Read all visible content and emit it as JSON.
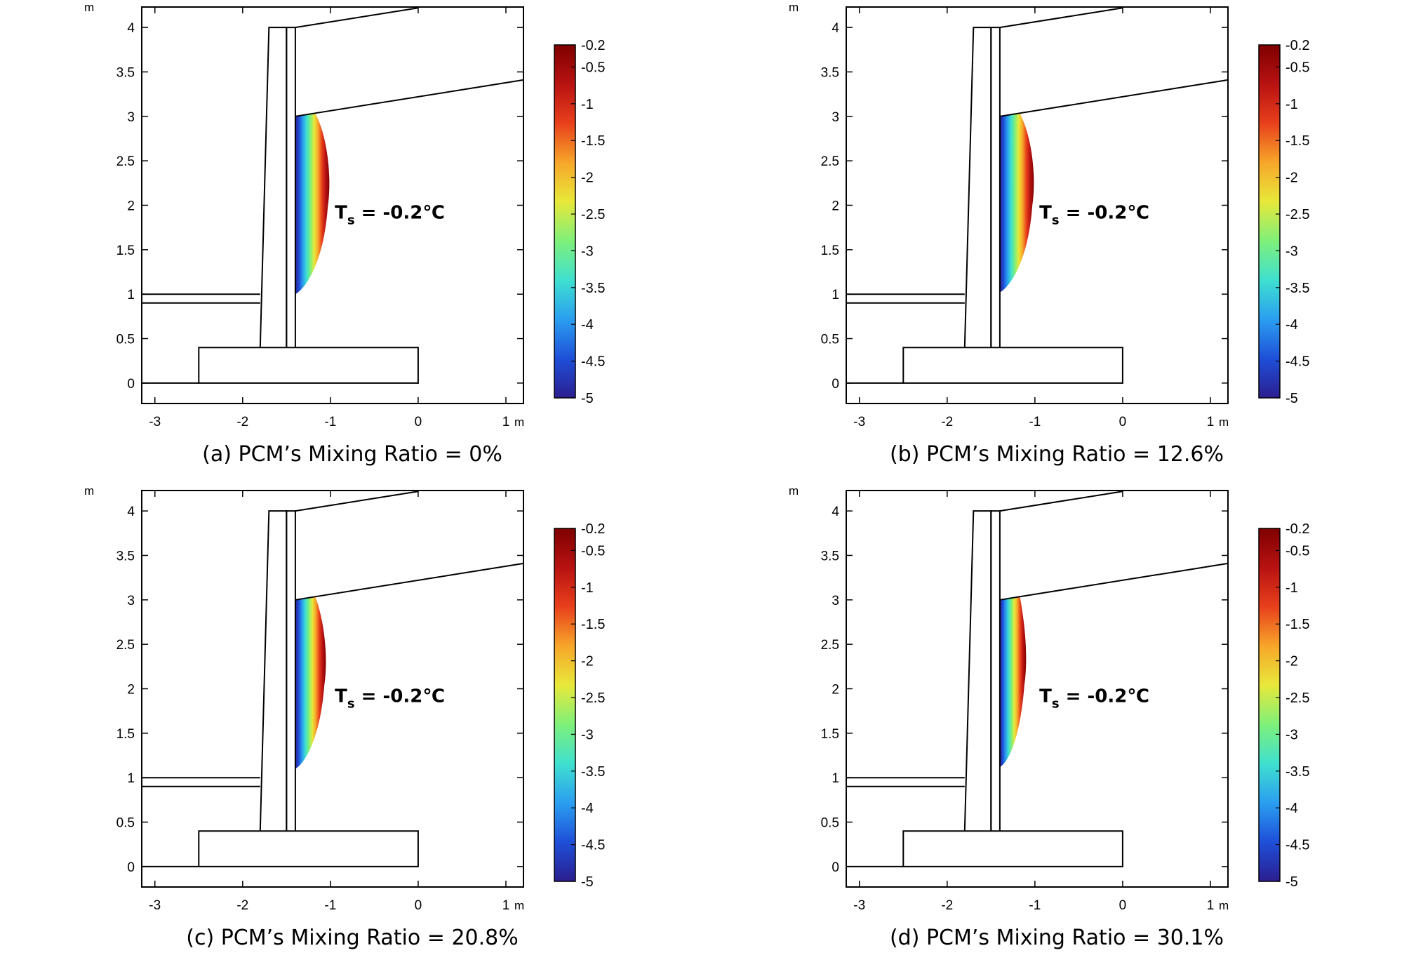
{
  "figure": {
    "panels": [
      {
        "caption": "(a) PCM’s Mixing Ratio = 0%",
        "annotation": "T",
        "annotation_sub": "s",
        "annotation_value": " = -0.2℃"
      },
      {
        "caption": "(b) PCM’s Mixing Ratio = 12.6%",
        "annotation": "T",
        "annotation_sub": "s",
        "annotation_value": " = -0.2℃"
      },
      {
        "caption": "(c) PCM’s Mixing Ratio = 20.8%",
        "annotation": "T",
        "annotation_sub": "s",
        "annotation_value": " = -0.2℃"
      },
      {
        "caption": "(d) PCM’s Mixing Ratio = 30.1%",
        "annotation": "T",
        "annotation_sub": "s",
        "annotation_value": " = -0.2℃"
      }
    ],
    "colors": {
      "line": "#000000",
      "background": "#ffffff"
    },
    "colormap": [
      "#2b1e8f",
      "#1e4fd8",
      "#2a9ef0",
      "#3fe0d0",
      "#7ef07a",
      "#e8e83a",
      "#f7a62a",
      "#e8401c",
      "#b81212",
      "#7f0000"
    ]
  },
  "chart_data": [
    {
      "type": "heatmap",
      "title": "",
      "xlabel": "m",
      "ylabel": "m",
      "x_ticks": [
        -3,
        -2,
        -1,
        0,
        1
      ],
      "x_tick_labels": [
        "-3",
        "-2",
        "-1",
        "0",
        "1"
      ],
      "y_ticks": [
        0,
        0.5,
        1,
        1.5,
        2,
        2.5,
        3,
        3.5,
        4
      ],
      "y_tick_labels": [
        "0",
        "0.5",
        "1",
        "1.5",
        "2",
        "2.5",
        "3",
        "3.5",
        "4"
      ],
      "xlim": [
        -3.15,
        1.2
      ],
      "ylim": [
        -0.23,
        4.23
      ],
      "colorbar": {
        "min": -5,
        "max": -0.2,
        "ticks": [
          -0.2,
          -0.5,
          -1,
          -1.5,
          -2,
          -2.5,
          -3,
          -3.5,
          -4,
          -4.5,
          -5
        ]
      },
      "frozen_zone": {
        "x_wall": -1.4,
        "y_top": 3.0,
        "y_bottom": 1.0,
        "x_max": -1.03
      },
      "annotation": "Ts = -0.2℃"
    },
    {
      "type": "heatmap",
      "title": "",
      "xlabel": "m",
      "ylabel": "m",
      "x_ticks": [
        -3,
        -2,
        -1,
        0,
        1
      ],
      "x_tick_labels": [
        "-3",
        "-2",
        "-1",
        "0",
        "1"
      ],
      "y_ticks": [
        0,
        0.5,
        1,
        1.5,
        2,
        2.5,
        3,
        3.5,
        4
      ],
      "y_tick_labels": [
        "0",
        "0.5",
        "1",
        "1.5",
        "2",
        "2.5",
        "3",
        "3.5",
        "4"
      ],
      "xlim": [
        -3.15,
        1.2
      ],
      "ylim": [
        -0.23,
        4.23
      ],
      "colorbar": {
        "min": -5,
        "max": -0.2,
        "ticks": [
          -0.2,
          -0.5,
          -1,
          -1.5,
          -2,
          -2.5,
          -3,
          -3.5,
          -4,
          -4.5,
          -5
        ]
      },
      "frozen_zone": {
        "x_wall": -1.4,
        "y_top": 3.0,
        "y_bottom": 1.02,
        "x_max": -1.03
      },
      "annotation": "Ts = -0.2℃"
    },
    {
      "type": "heatmap",
      "title": "",
      "xlabel": "m",
      "ylabel": "m",
      "x_ticks": [
        -3,
        -2,
        -1,
        0,
        1
      ],
      "x_tick_labels": [
        "-3",
        "-2",
        "-1",
        "0",
        "1"
      ],
      "y_ticks": [
        0,
        0.5,
        1,
        1.5,
        2,
        2.5,
        3,
        3.5,
        4
      ],
      "y_tick_labels": [
        "0",
        "0.5",
        "1",
        "1.5",
        "2",
        "2.5",
        "3",
        "3.5",
        "4"
      ],
      "xlim": [
        -3.15,
        1.2
      ],
      "ylim": [
        -0.23,
        4.23
      ],
      "colorbar": {
        "min": -5,
        "max": -0.2,
        "ticks": [
          -0.2,
          -0.5,
          -1,
          -1.5,
          -2,
          -2.5,
          -3,
          -3.5,
          -4,
          -4.5,
          -5
        ]
      },
      "frozen_zone": {
        "x_wall": -1.4,
        "y_top": 3.0,
        "y_bottom": 1.1,
        "x_max": -1.07
      },
      "annotation": "Ts = -0.2℃"
    },
    {
      "type": "heatmap",
      "title": "",
      "xlabel": "m",
      "ylabel": "m",
      "x_ticks": [
        -3,
        -2,
        -1,
        0,
        1
      ],
      "x_tick_labels": [
        "-3",
        "-2",
        "-1",
        "0",
        "1"
      ],
      "y_ticks": [
        0,
        0.5,
        1,
        1.5,
        2,
        2.5,
        3,
        3.5,
        4
      ],
      "y_tick_labels": [
        "0",
        "0.5",
        "1",
        "1.5",
        "2",
        "2.5",
        "3",
        "3.5",
        "4"
      ],
      "xlim": [
        -3.15,
        1.2
      ],
      "ylim": [
        -0.23,
        4.23
      ],
      "colorbar": {
        "min": -5,
        "max": -0.2,
        "ticks": [
          -0.2,
          -0.5,
          -1,
          -1.5,
          -2,
          -2.5,
          -3,
          -3.5,
          -4,
          -4.5,
          -5
        ]
      },
      "frozen_zone": {
        "x_wall": -1.4,
        "y_top": 3.0,
        "y_bottom": 1.12,
        "x_max": -1.12
      },
      "annotation": "Ts = -0.2℃"
    }
  ]
}
